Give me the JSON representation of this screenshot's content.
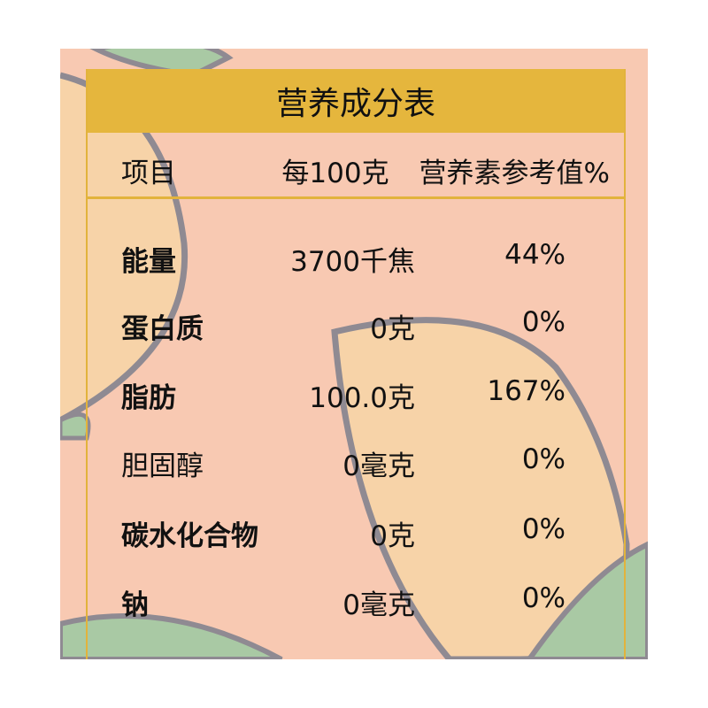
{
  "title": "营养成分表",
  "header": {
    "item": "项目",
    "per100g": "每100克",
    "nrv": "营养素参考值%"
  },
  "rows": [
    {
      "name": "能量",
      "amount": "3700千焦",
      "nrv": "44%"
    },
    {
      "name": "蛋白质",
      "amount": "0克",
      "nrv": "0%"
    },
    {
      "name": "脂肪",
      "amount": "100.0克",
      "nrv": "167%"
    },
    {
      "name": "胆固醇",
      "amount": "0毫克",
      "nrv": "0%"
    },
    {
      "name": "碳水化合物",
      "amount": "0克",
      "nrv": "0%"
    },
    {
      "name": "钠",
      "amount": "0毫克",
      "nrv": "0%"
    }
  ],
  "colors": {
    "background": "#f8c9b2",
    "title_band": "#e5b63d",
    "border": "#e2b33c",
    "leaf": "#a9c9a4",
    "outline": "#8f8a92"
  }
}
